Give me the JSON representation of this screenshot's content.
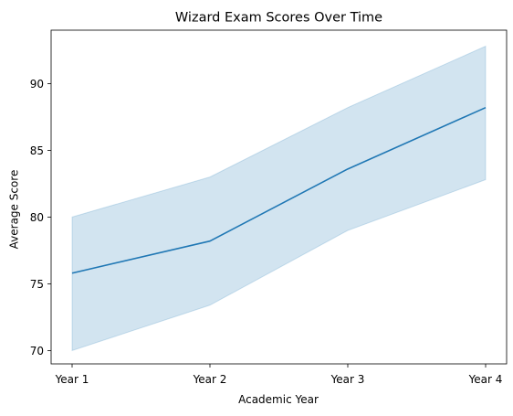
{
  "chart_data": {
    "type": "line",
    "title": "Wizard Exam Scores Over Time",
    "xlabel": "Academic Year",
    "ylabel": "Average Score",
    "categories": [
      "Year 1",
      "Year 2",
      "Year 3",
      "Year 4"
    ],
    "series": [
      {
        "values": [
          75.8,
          78.2,
          83.6,
          88.2
        ],
        "ci_lower": [
          70.0,
          73.4,
          79.0,
          82.8
        ],
        "ci_upper": [
          80.0,
          83.0,
          88.2,
          92.8
        ],
        "color": "#1f77b4",
        "band_color": "#1f77b4"
      }
    ],
    "ylim": [
      69.0,
      94.0
    ],
    "yticks": [
      70,
      75,
      80,
      85,
      90
    ],
    "grid": false,
    "legend": false
  }
}
